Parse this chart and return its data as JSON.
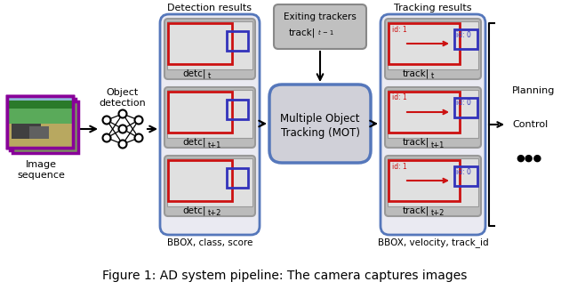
{
  "fig_width": 6.4,
  "fig_height": 3.26,
  "bg_color": "#ffffff",
  "title_text": "Figure 1: AD system pipeline: The camera captures images",
  "detection_title": "Detection results",
  "tracking_title": "Tracking results",
  "mot_label_line1": "Multiple Object",
  "mot_label_line2": "Tracking (MOT)",
  "exiting_line1": "Exiting trackers",
  "exiting_line2": "track|",
  "exiting_sub": "t −1",
  "bbox_det_label": "BBOX, class, score",
  "bbox_track_label": "BBOX, velocity, track_id",
  "object_detection_label": "Object\ndetection",
  "image_sequence_label": "Image\nsequence",
  "planning_label": "Planning",
  "control_label": "Control",
  "det_labels": [
    "detc|",
    "detc|",
    "detc|"
  ],
  "det_subs": [
    "t",
    "t+1",
    "t+2"
  ],
  "track_labels": [
    "track|",
    "track|",
    "track|"
  ],
  "track_subs": [
    "t",
    "t+1",
    "t+2"
  ],
  "outer_box_color": "#5577bb",
  "outer_box_fill": "#eaeaf2",
  "frame_outer_color": "#999999",
  "frame_outer_fill": "#bbbbbb",
  "frame_inner_fill": "#e0e0e0",
  "mot_box_color": "#5577bb",
  "mot_box_fill": "#d0d0d8",
  "exiting_box_fill": "#c0c0c0",
  "exiting_box_color": "#888888",
  "red_color": "#cc1111",
  "blue_color": "#3333bb",
  "purple_color": "#880099",
  "arrow_color": "#000000",
  "photo_sky": "#90b8d8",
  "photo_tree1": "#2a7a2a",
  "photo_tree2": "#5aaa5a",
  "photo_ground": "#b8a860",
  "photo_car": "#404040"
}
